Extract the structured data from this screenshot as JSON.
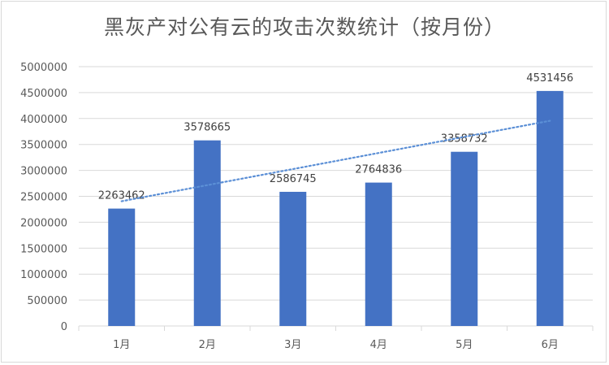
{
  "chart_data": {
    "type": "bar",
    "title": "黑灰产对公有云的攻击次数统计（按月份）",
    "categories": [
      "1月",
      "2月",
      "3月",
      "4月",
      "5月",
      "6月"
    ],
    "values": [
      2263462,
      3578665,
      2586745,
      2764836,
      3358732,
      4531456
    ],
    "data_labels": [
      "2263462",
      "3578665",
      "2586745",
      "2764836",
      "3358732",
      "4531456"
    ],
    "ylim": [
      0,
      5000000
    ],
    "yticks": [
      0,
      500000,
      1000000,
      1500000,
      2000000,
      2500000,
      3000000,
      3500000,
      4000000,
      4500000,
      5000000
    ],
    "ytick_labels": [
      "0",
      "500000",
      "1000000",
      "1500000",
      "2000000",
      "2500000",
      "3000000",
      "3500000",
      "4000000",
      "4500000",
      "5000000"
    ],
    "trendline": {
      "type": "linear",
      "style": "dotted"
    },
    "grid": true,
    "legend": "none",
    "colors": {
      "bar": "#4472c4",
      "trend": "#5b8fd6",
      "grid": "#d9d9d9"
    }
  }
}
